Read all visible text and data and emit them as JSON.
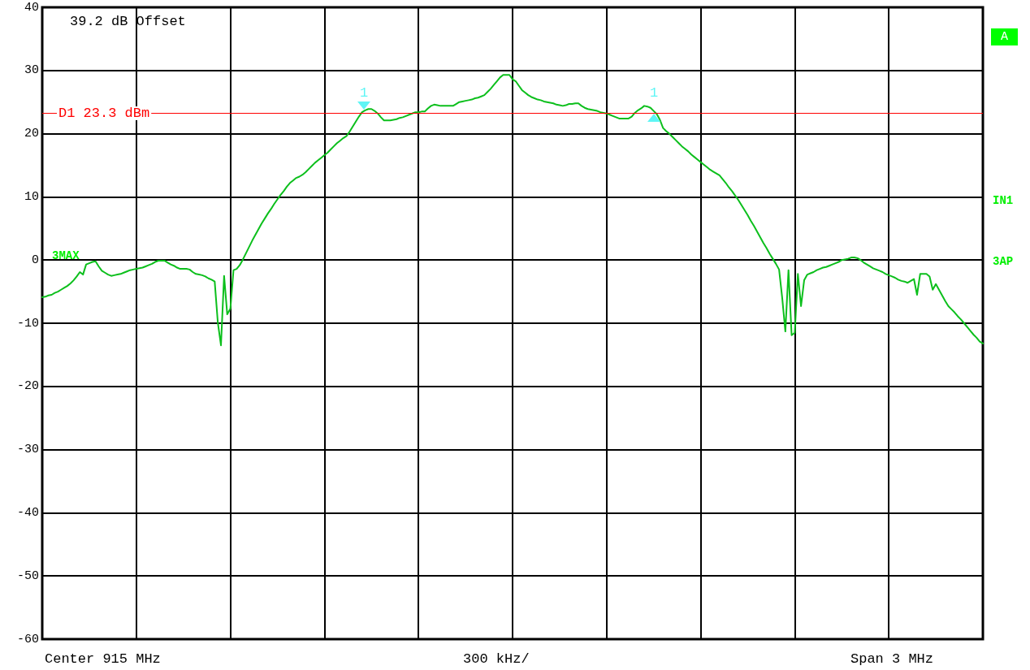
{
  "chart_data": {
    "type": "line",
    "categories": [
      null,
      null,
      null,
      null,
      null,
      null,
      null,
      null,
      null,
      null,
      null,
      null,
      null,
      null,
      null,
      null,
      null,
      null,
      null,
      null,
      null,
      null,
      null,
      null,
      null,
      null,
      null,
      null,
      null,
      null,
      null,
      null,
      null,
      null,
      null,
      null,
      null,
      null,
      null,
      null,
      null,
      null,
      null,
      null,
      null,
      null,
      null,
      null,
      null,
      null,
      null,
      null,
      null,
      null,
      null,
      null,
      null,
      null,
      null,
      null,
      null,
      null,
      null,
      null,
      null,
      null,
      null,
      null,
      null,
      null,
      null,
      null,
      null,
      null,
      null,
      null,
      null,
      null,
      null,
      null,
      null,
      null,
      null,
      null,
      null,
      null,
      null,
      null,
      null,
      null,
      null,
      null,
      null,
      null,
      null,
      null,
      null,
      null,
      null,
      null,
      null,
      null,
      null,
      null,
      null,
      null,
      null,
      null,
      null,
      null,
      null,
      null,
      null,
      null,
      null,
      null,
      null,
      null,
      null,
      null,
      null,
      null,
      null,
      null,
      null,
      null,
      null,
      null,
      null,
      null,
      null,
      null,
      null,
      null,
      null,
      null,
      null,
      null,
      null,
      null,
      null,
      null,
      null,
      null,
      null,
      null,
      null,
      null,
      null,
      null,
      null,
      null,
      null,
      null,
      null,
      null,
      null,
      null,
      null,
      null,
      null,
      null,
      null,
      null,
      null,
      null,
      null,
      null,
      null,
      null,
      null,
      null,
      null,
      null,
      null,
      null,
      null,
      null,
      null,
      null,
      null,
      null,
      null,
      null,
      null,
      null,
      null,
      null,
      null,
      null,
      null,
      null,
      null,
      null,
      null,
      null,
      null,
      null,
      null,
      null,
      null,
      null,
      null,
      null,
      null,
      null,
      null,
      null,
      null,
      null,
      null,
      null,
      null,
      null,
      null,
      null,
      null,
      null,
      null,
      null,
      null,
      null,
      null,
      null,
      null,
      null,
      null,
      null,
      null,
      null,
      null,
      null,
      null,
      null,
      null,
      null,
      null,
      null,
      null,
      null,
      null,
      null,
      null,
      null,
      null,
      null,
      null,
      null,
      null,
      null,
      null,
      null,
      null,
      null,
      null,
      null,
      null,
      null,
      null,
      null,
      null,
      null,
      null,
      null,
      null,
      null,
      null,
      null,
      null,
      null,
      null,
      null,
      null,
      null,
      null,
      null,
      null,
      null,
      null,
      null,
      null,
      null,
      null,
      null,
      null,
      null,
      null,
      null,
      null,
      null,
      null,
      null,
      null,
      null,
      null,
      null,
      null,
      null,
      null,
      null,
      null
    ],
    "series": [
      {
        "color": "#0cbf1c",
        "values": [
          -5.9,
          -5.8,
          -5.6,
          -5.5,
          -5.2,
          -5.0,
          -4.7,
          -4.4,
          -4.1,
          -3.7,
          -3.2,
          -2.6,
          -1.9,
          -2.3,
          -0.7,
          -0.5,
          -0.3,
          -0.2,
          -1.0,
          -1.7,
          -2.0,
          -2.3,
          -2.5,
          -2.4,
          -2.3,
          -2.2,
          -2.0,
          -1.8,
          -1.6,
          -1.5,
          -1.4,
          -1.3,
          -1.2,
          -1.0,
          -0.8,
          -0.6,
          -0.3,
          -0.1,
          -0.1,
          -0.1,
          -0.4,
          -0.7,
          -0.9,
          -1.2,
          -1.4,
          -1.4,
          -1.4,
          -1.5,
          -1.9,
          -2.2,
          -2.3,
          -2.4,
          -2.6,
          -2.9,
          -3.1,
          -3.4,
          -9.9,
          -13.5,
          -2.5,
          -8.6,
          -7.7,
          -1.6,
          -1.4,
          -0.8,
          0.1,
          1.1,
          2.1,
          3.1,
          4.0,
          4.9,
          5.8,
          6.6,
          7.4,
          8.1,
          8.9,
          9.6,
          10.3,
          10.9,
          11.6,
          12.2,
          12.6,
          13.0,
          13.2,
          13.5,
          13.9,
          14.4,
          14.9,
          15.4,
          15.8,
          16.2,
          16.6,
          17.0,
          17.5,
          18.0,
          18.5,
          18.9,
          19.3,
          19.6,
          20.3,
          21.1,
          21.9,
          22.7,
          23.4,
          23.7,
          23.9,
          23.9,
          23.6,
          23.2,
          22.6,
          22.1,
          22.1,
          22.1,
          22.2,
          22.3,
          22.5,
          22.6,
          22.8,
          23.0,
          23.2,
          23.4,
          23.4,
          23.5,
          23.5,
          24.0,
          24.4,
          24.6,
          24.5,
          24.4,
          24.4,
          24.4,
          24.4,
          24.4,
          24.7,
          25.0,
          25.1,
          25.2,
          25.3,
          25.4,
          25.6,
          25.7,
          25.9,
          26.1,
          26.6,
          27.1,
          27.7,
          28.3,
          28.9,
          29.3,
          29.3,
          29.3,
          28.6,
          28.3,
          27.6,
          26.9,
          26.5,
          26.1,
          25.8,
          25.6,
          25.4,
          25.3,
          25.1,
          25.0,
          24.9,
          24.8,
          24.6,
          24.5,
          24.4,
          24.5,
          24.7,
          24.7,
          24.8,
          24.8,
          24.4,
          24.1,
          23.9,
          23.8,
          23.7,
          23.6,
          23.4,
          23.3,
          23.2,
          23.0,
          22.8,
          22.6,
          22.4,
          22.4,
          22.4,
          22.4,
          22.7,
          23.3,
          23.7,
          24.0,
          24.4,
          24.3,
          24.1,
          23.6,
          23.1,
          22.2,
          20.9,
          20.4,
          20.0,
          19.5,
          19.0,
          18.5,
          18.0,
          17.6,
          17.2,
          16.7,
          16.3,
          15.9,
          15.5,
          15.1,
          14.7,
          14.3,
          14.0,
          13.7,
          13.4,
          12.8,
          12.2,
          11.5,
          10.9,
          10.2,
          9.5,
          8.7,
          7.9,
          7.1,
          6.2,
          5.4,
          4.5,
          3.6,
          2.7,
          1.9,
          1.0,
          0.2,
          -0.6,
          -1.5,
          -6.0,
          -11.3,
          -1.6,
          -11.9,
          -11.5,
          -2.2,
          -7.3,
          -3.2,
          -2.3,
          -2.1,
          -1.9,
          -1.6,
          -1.4,
          -1.2,
          -1.1,
          -0.9,
          -0.7,
          -0.5,
          -0.3,
          0.0,
          0.1,
          0.2,
          0.4,
          0.4,
          0.3,
          0.0,
          -0.4,
          -0.7,
          -1.0,
          -1.3,
          -1.5,
          -1.7,
          -1.9,
          -2.2,
          -2.4,
          -2.6,
          -2.8,
          -3.1,
          -3.3,
          -3.4,
          -3.6,
          -3.3,
          -3.0,
          -5.5,
          -2.2,
          -2.2,
          -2.2,
          -2.6,
          -4.7,
          -3.8,
          -4.7,
          -5.6,
          -6.5,
          -7.3,
          -7.8,
          -8.3,
          -8.9,
          -9.4,
          -10.0,
          -10.6,
          -11.2,
          -11.8,
          -12.3,
          -12.9,
          -13.2
        ]
      }
    ],
    "ylim": [
      -60,
      40
    ],
    "yticks": [
      -60,
      -50,
      -40,
      -30,
      -20,
      -10,
      0,
      10,
      20,
      30,
      40
    ],
    "tick_labels": "y",
    "grid": true,
    "line_style": "solid",
    "ref_lines": [
      {
        "axis": "y",
        "value": 23.3,
        "label": "D1 23.3 dBm",
        "color": "#ff0000"
      }
    ],
    "annotations": [
      "39.2 dB Offset",
      "Center 915 MHz",
      "300 kHz/",
      "Span 3 MHz",
      "A",
      "IN1",
      "3AP",
      "3MAX",
      "1",
      "1"
    ]
  }
}
